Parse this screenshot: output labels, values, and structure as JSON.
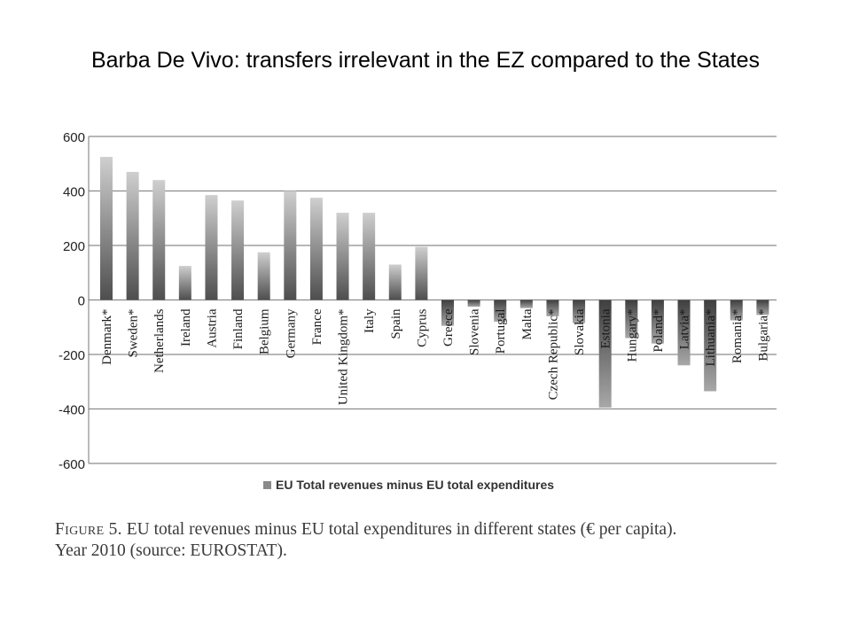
{
  "slide": {
    "title": "Barba De Vivo: transfers irrelevant in the EZ compared to the States"
  },
  "caption": {
    "figure_label": "Figure 5.",
    "text": "EU total revenues minus EU total expenditures in different states (€ per capita).",
    "line2": "Year 2010 (source: EUROSTAT)."
  },
  "colors": {
    "bar_light": "#c4c4c4",
    "bar_dark": "#555555",
    "grid": "#8c8c8c"
  },
  "chart_data": {
    "type": "bar",
    "title": "",
    "xlabel": "",
    "ylabel": "",
    "ylim": [
      -600,
      600
    ],
    "yticks": [
      600,
      400,
      200,
      0,
      -200,
      -400,
      -600
    ],
    "ytick_labels": [
      "600",
      "400",
      "200",
      "0",
      "-200",
      "-400",
      "-600"
    ],
    "grid": true,
    "legend_position": "bottom",
    "categories": [
      "Denmark*",
      "Sweden*",
      "Netherlands",
      "Ireland",
      "Austria",
      "Finland",
      "Belgium",
      "Germany",
      "France",
      "United Kingdom*",
      "Italy",
      "Spain",
      "Cyprus",
      "Greece",
      "Slovenia",
      "Portugal",
      "Malta",
      "Czech Republic*",
      "Slovakia",
      "Estonia",
      "Hungary*",
      "Poland*",
      "Latvia*",
      "Lithuania*",
      "Romania*",
      "Bulgaria*"
    ],
    "series": [
      {
        "name": "EU Total revenues minus EU total expenditures",
        "values": [
          525,
          470,
          440,
          125,
          385,
          365,
          175,
          400,
          375,
          320,
          320,
          130,
          195,
          -95,
          -25,
          -80,
          -30,
          -60,
          -85,
          -395,
          -140,
          -160,
          -240,
          -335,
          -75,
          -55
        ]
      }
    ]
  }
}
